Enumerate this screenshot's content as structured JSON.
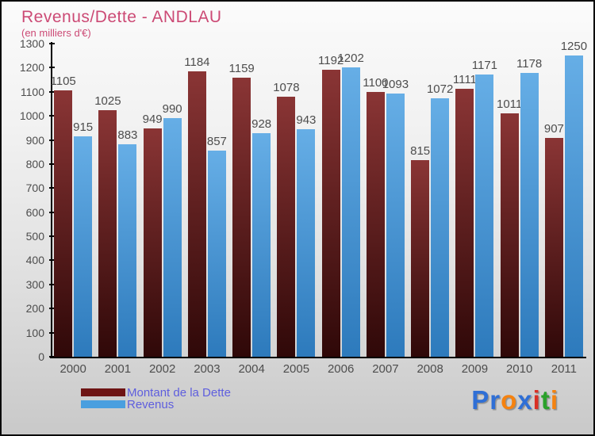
{
  "header": {
    "title": "Revenus/Dette - ANDLAU",
    "subtitle": "(en milliers d'€)"
  },
  "chart_data": {
    "type": "bar",
    "title": "Revenus/Dette - ANDLAU",
    "subtitle": "(en milliers d'€)",
    "categories": [
      "2000",
      "2001",
      "2002",
      "2003",
      "2004",
      "2005",
      "2006",
      "2007",
      "2008",
      "2009",
      "2010",
      "2011"
    ],
    "series": [
      {
        "name": "Montant de la Dette",
        "values": [
          1105,
          1025,
          949,
          1184,
          1159,
          1078,
          1192,
          1100,
          815,
          1111,
          1011,
          907
        ],
        "color_top": "#8a3535",
        "color_bottom": "#2f0808",
        "legend_color": "#6e1414"
      },
      {
        "name": "Revenus",
        "values": [
          915,
          883,
          990,
          857,
          928,
          943,
          1202,
          1093,
          1072,
          1171,
          1178,
          1250
        ],
        "color_top": "#66aee6",
        "color_bottom": "#2d7abc",
        "legend_color": "#4a9fdf"
      }
    ],
    "ylim": [
      0,
      1300
    ],
    "ytick_step": 100,
    "grid": false,
    "value_labels": true,
    "legend_position": "bottom-left"
  },
  "styles": {
    "title_color": "#cc4a75",
    "axis_text_color": "#4d4d4d",
    "value_label_color": "#4d4d4d",
    "legend_text_color": "#5e5ede",
    "axis_line_color": "#000000"
  },
  "logo": {
    "text": "Proxiti",
    "letters": [
      {
        "ch": "P",
        "color": "#2f6fd6"
      },
      {
        "ch": "r",
        "color": "#2f6fd6"
      },
      {
        "ch": "o",
        "color": "#f5820f"
      },
      {
        "ch": "x",
        "color": "#2f6fd6"
      },
      {
        "ch": "i",
        "color": "#d93025"
      },
      {
        "ch": "t",
        "color": "#2ba12b"
      },
      {
        "ch": "i",
        "color": "#f5820f"
      }
    ]
  }
}
